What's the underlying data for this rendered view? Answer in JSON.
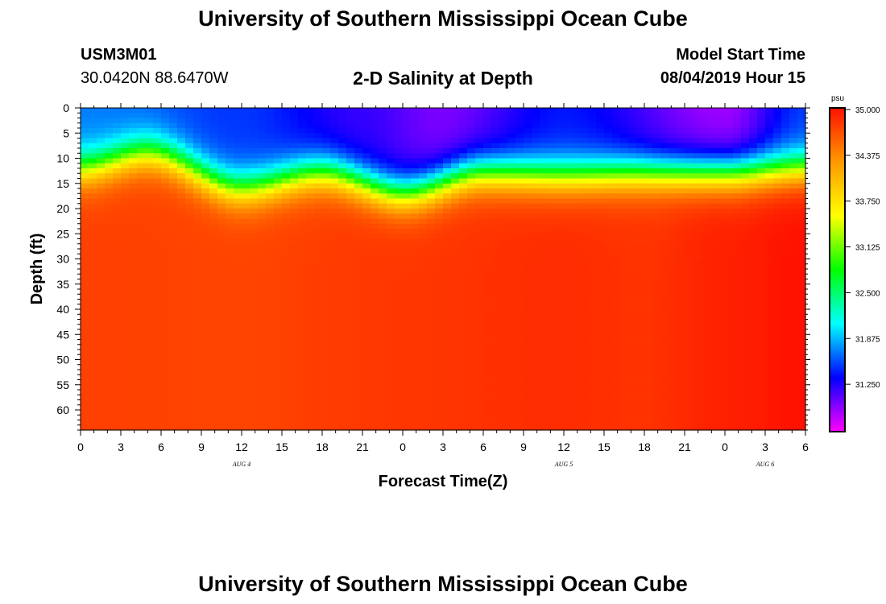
{
  "header": {
    "title": "University of Southern Mississippi Ocean Cube",
    "station_id": "USM3M01",
    "coordinates": "30.0420N 88.6470W",
    "plot_title": "2-D Salinity at Depth",
    "start_label": "Model Start Time",
    "start_value": "08/04/2019 Hour 15"
  },
  "footer": {
    "title": "University of Southern Mississippi Ocean Cube"
  },
  "chart_data": {
    "type": "heatmap",
    "title": "2-D Salinity at Depth",
    "xlabel": "Forecast Time(Z)",
    "ylabel": "Depth (ft)",
    "x_range_hours": [
      0,
      54
    ],
    "y_range_ft": [
      0,
      64
    ],
    "x_ticks": [
      "0",
      "3",
      "6",
      "9",
      "12",
      "15",
      "18",
      "21",
      "0",
      "3",
      "6",
      "9",
      "12",
      "15",
      "18",
      "21",
      "0",
      "3",
      "6"
    ],
    "y_ticks": [
      "0",
      "5",
      "10",
      "15",
      "20",
      "25",
      "30",
      "35",
      "40",
      "45",
      "50",
      "55",
      "60"
    ],
    "day_labels": [
      {
        "label": "AUG 4",
        "hour": 12
      },
      {
        "label": "AUG 5",
        "hour": 36
      },
      {
        "label": "AUG 6",
        "hour": 51
      }
    ],
    "colorbar": {
      "unit": "psu",
      "min": 30.625,
      "max": 35.0,
      "ticks": [
        "35.000",
        "34.375",
        "33.750",
        "33.125",
        "32.500",
        "31.875",
        "31.250"
      ],
      "colors": [
        "#ff00ff",
        "#0000ff",
        "#00ffff",
        "#00ff00",
        "#ffff00",
        "#ff9900",
        "#ff1100"
      ]
    },
    "interface_depth_ft": [
      {
        "hour": 0,
        "depth": 12
      },
      {
        "hour": 5,
        "depth": 9
      },
      {
        "hour": 12,
        "depth": 16
      },
      {
        "hour": 18,
        "depth": 13
      },
      {
        "hour": 24,
        "depth": 17
      },
      {
        "hour": 30,
        "depth": 13
      },
      {
        "hour": 36,
        "depth": 13.5
      },
      {
        "hour": 42,
        "depth": 13
      },
      {
        "hour": 48,
        "depth": 13
      },
      {
        "hour": 54,
        "depth": 12
      }
    ],
    "deep_salinity_psu": [
      {
        "hour": 0,
        "value": 34.75
      },
      {
        "hour": 12,
        "value": 34.73
      },
      {
        "hour": 24,
        "value": 34.8
      },
      {
        "hour": 36,
        "value": 34.85
      },
      {
        "hour": 42,
        "value": 34.82
      },
      {
        "hour": 48,
        "value": 34.92
      },
      {
        "hour": 54,
        "value": 35.0
      }
    ],
    "surface_salinity_psu": [
      {
        "hour": 0,
        "value": 31.7
      },
      {
        "hour": 12,
        "value": 31.5
      },
      {
        "hour": 21,
        "value": 31.2
      },
      {
        "hour": 27,
        "value": 31.0
      },
      {
        "hour": 36,
        "value": 31.4
      },
      {
        "hour": 48,
        "value": 30.9
      },
      {
        "hour": 54,
        "value": 31.5
      }
    ]
  }
}
